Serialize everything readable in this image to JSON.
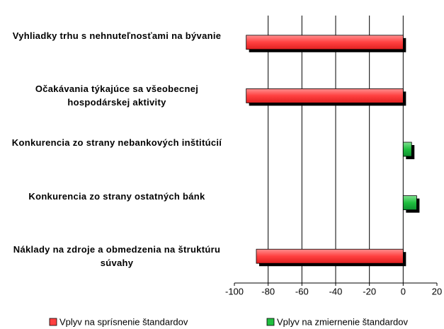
{
  "chart_data": {
    "type": "hbar",
    "categories": [
      "Vyhliadky trhu s nehnuteľnosťami na bývanie",
      "Očakávania týkajúce sa všeobecnej hospodárskej aktivity",
      "Konkurencia zo strany nebankových inštitúcií",
      "Konkurencia zo strany ostatných bánk",
      "Náklady na zdroje a obmedzenia na štruktúru súvahy"
    ],
    "series": [
      {
        "name": "Vplyv na sprísnenie štandardov",
        "color": "#ff4040",
        "values": [
          -93,
          -93,
          null,
          null,
          -87
        ]
      },
      {
        "name": "Vplyv na zmiernenie štandardov",
        "color": "#1fbf3f",
        "values": [
          null,
          null,
          5,
          8,
          null
        ]
      }
    ],
    "xlim": [
      -100,
      20
    ],
    "xticks": [
      -100,
      -80,
      -60,
      -40,
      -20,
      0,
      20
    ],
    "grid": true,
    "legend": "bottom"
  }
}
